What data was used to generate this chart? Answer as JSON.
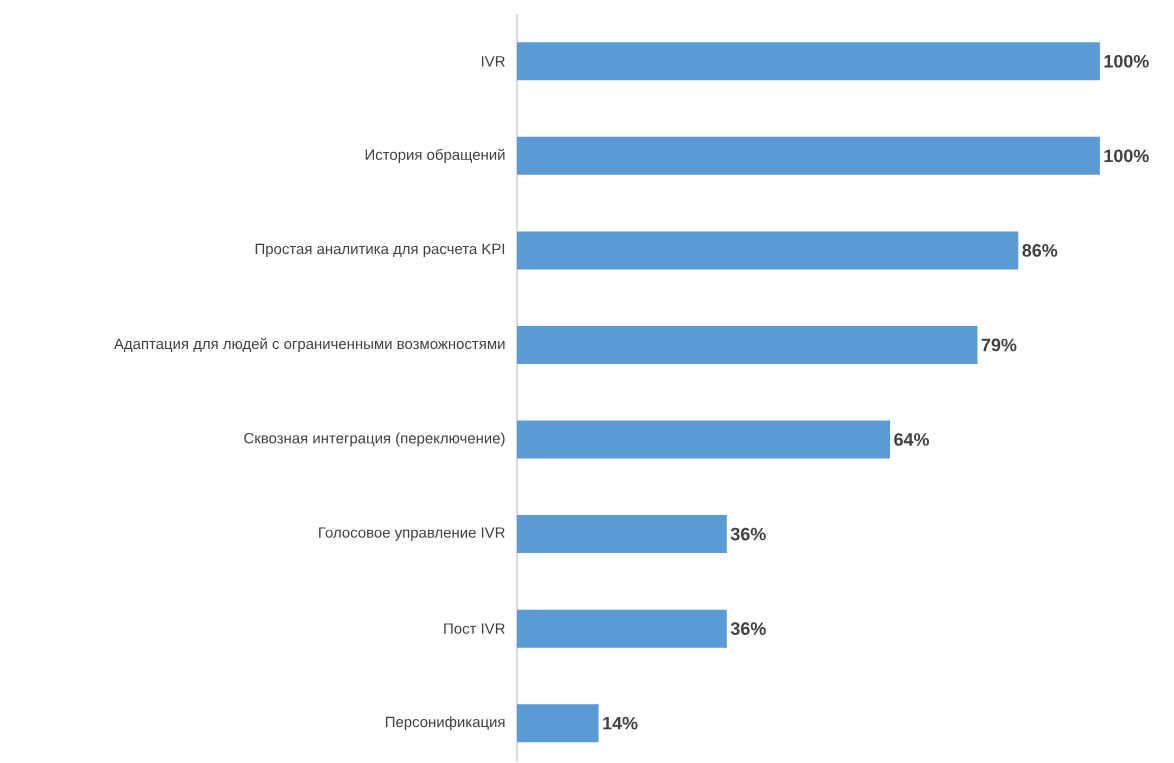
{
  "chart_data": {
    "type": "bar",
    "orientation": "horizontal",
    "categories": [
      "IVR",
      "История обращений",
      "Простая аналитика для расчета KPI",
      "Адаптация для людей с ограниченными возможностями",
      "Сквозная интеграция (переключение)",
      "Голосовое управление IVR",
      "Пост IVR",
      "Персонификация"
    ],
    "values": [
      100,
      100,
      86,
      79,
      64,
      36,
      36,
      14
    ],
    "value_labels": [
      "100%",
      "100%",
      "86%",
      "79%",
      "64%",
      "36%",
      "36%",
      "14%"
    ],
    "color": "#5b9bd5"
  }
}
